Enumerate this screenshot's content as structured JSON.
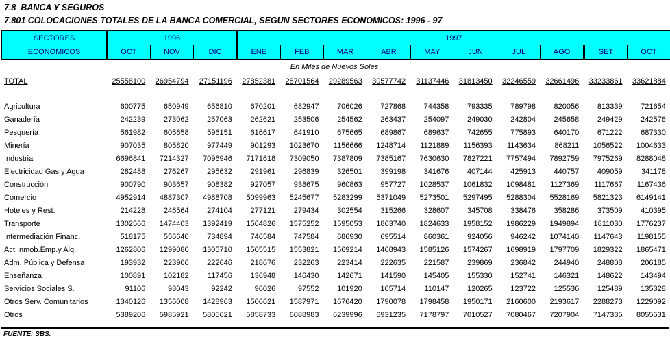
{
  "page": {
    "title_line1": "7.8  BANCA Y SEGUROS",
    "title_line2": "7.801 COLOCACIONES TOTALES DE LA BANCA COMERCIAL, SEGUN SECTORES ECONOMICOS: 1996 - 97"
  },
  "colors": {
    "header_bg": "#00FFFF",
    "header_text": "#000080",
    "body_text": "#000000"
  },
  "table": {
    "header": {
      "col_label_line1": "SECTORES",
      "col_label_line2": "ECONOMICOS",
      "year_groups": [
        {
          "label": "1996",
          "span": 3
        },
        {
          "label": "1997",
          "span": 10
        }
      ],
      "months": [
        "OCT",
        "NOV",
        "DIC",
        "ENE",
        "FEB",
        "MAR",
        "ABR",
        "MAY",
        "JUN",
        "JUL",
        "AGO",
        "SET",
        "OCT"
      ]
    },
    "unit_note": "En Miles de Nuevos Soles",
    "total_row": {
      "label": "TOTAL",
      "values": [
        25558100,
        26954794,
        27151196,
        27852381,
        28701564,
        29289563,
        30577742,
        31137446,
        31813450,
        32246559,
        32661496,
        33233861,
        33621884
      ]
    },
    "rows": [
      {
        "label": "Agricultura",
        "values": [
          600775,
          650949,
          656810,
          670201,
          682947,
          706026,
          727868,
          744358,
          793335,
          789798,
          820056,
          813339,
          721654
        ]
      },
      {
        "label": "Ganadería",
        "values": [
          242239,
          273062,
          257063,
          262621,
          253506,
          254562,
          263437,
          254097,
          249030,
          242804,
          245658,
          249429,
          242576
        ]
      },
      {
        "label": "Pesquería",
        "values": [
          561982,
          605658,
          596151,
          616617,
          641910,
          675665,
          689867,
          689637,
          742655,
          775893,
          640170,
          671222,
          687330
        ]
      },
      {
        "label": "Minería",
        "values": [
          907035,
          805820,
          977449,
          901293,
          1023670,
          1156666,
          1248714,
          1121889,
          1156393,
          1143634,
          868211,
          1056522,
          1004633
        ]
      },
      {
        "label": "Industria",
        "values": [
          6696841,
          7214327,
          7096946,
          7171618,
          7309050,
          7387809,
          7385167,
          7630630,
          7827221,
          7757494,
          7892759,
          7975269,
          8288048
        ]
      },
      {
        "label": "Electricidad Gas y Agua",
        "values": [
          282488,
          276267,
          295632,
          291961,
          296839,
          326501,
          399198,
          341676,
          407144,
          425913,
          440757,
          409059,
          341178
        ]
      },
      {
        "label": "Construcción",
        "values": [
          900790,
          903657,
          908382,
          927057,
          938675,
          960863,
          957727,
          1028537,
          1061832,
          1098481,
          1127369,
          1117667,
          1167436
        ]
      },
      {
        "label": "Comercio",
        "values": [
          4952914,
          4887307,
          4988708,
          5099963,
          5245677,
          5283299,
          5371049,
          5273501,
          5297495,
          5288304,
          5528169,
          5821323,
          6149141
        ]
      },
      {
        "label": "Hoteles y Rest.",
        "values": [
          214228,
          246564,
          274104,
          277121,
          279434,
          302554,
          315266,
          328607,
          345708,
          338476,
          358286,
          373509,
          410395
        ]
      },
      {
        "label": "Transporte",
        "values": [
          1302566,
          1474403,
          1392419,
          1564826,
          1575252,
          1595053,
          1863740,
          1824633,
          1958152,
          1986229,
          1949894,
          1811030,
          1776237
        ]
      },
      {
        "label": "Intermediación Financ.",
        "values": [
          518175,
          556640,
          734894,
          746584,
          747584,
          686930,
          695514,
          860361,
          924056,
          946242,
          1074140,
          1147643,
          1198155
        ]
      },
      {
        "label": "Act.Inmob.Emp.y Alq.",
        "values": [
          1262806,
          1299080,
          1305710,
          1505515,
          1553821,
          1569214,
          1468943,
          1585126,
          1574267,
          1698919,
          1797709,
          1829322,
          1865471
        ]
      },
      {
        "label": "Adm. Pública y Defensa",
        "values": [
          193932,
          223906,
          222646,
          218676,
          232263,
          223414,
          222635,
          221587,
          239869,
          236842,
          244940,
          248808,
          206185
        ]
      },
      {
        "label": "Enseñanza",
        "values": [
          100891,
          102182,
          117456,
          136948,
          146430,
          142671,
          141590,
          145405,
          155330,
          152741,
          146321,
          148622,
          143494
        ]
      },
      {
        "label": "Servicios Sociales S.",
        "values": [
          91106,
          93043,
          92242,
          96026,
          97552,
          101920,
          105714,
          110147,
          120265,
          123722,
          125536,
          125489,
          135328
        ]
      },
      {
        "label": "Otros Serv. Comunitarios",
        "values": [
          1340126,
          1356008,
          1428963,
          1506621,
          1587971,
          1676420,
          1790078,
          1798458,
          1950171,
          2160600,
          2193617,
          2288273,
          1229092
        ]
      },
      {
        "label": "Otros",
        "values": [
          5389206,
          5985921,
          5805621,
          5858733,
          6088983,
          6239996,
          6931235,
          7178797,
          7010527,
          7080467,
          7207904,
          7147335,
          8055531
        ]
      }
    ]
  },
  "footer": {
    "source": "FUENTE: SBS."
  }
}
